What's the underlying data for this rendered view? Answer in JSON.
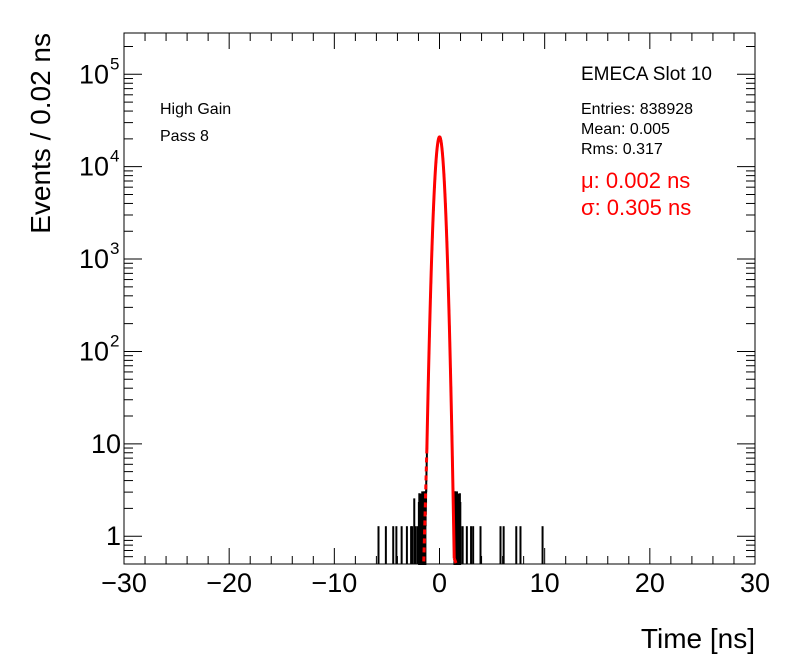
{
  "chart_data": {
    "type": "histogram",
    "xlabel": "Time [ns]",
    "ylabel": "Events / 0.02 ns",
    "xlim": [
      -30,
      30
    ],
    "ylim": [
      0.5,
      280000
    ],
    "yscale": "log",
    "bin_width": 0.02,
    "x_ticks": [
      "−30",
      "−20",
      "−10",
      "0",
      "10",
      "20",
      "30"
    ],
    "x_tick_values": [
      -30,
      -20,
      -10,
      0,
      10,
      20,
      30
    ],
    "y_ticks": [
      {
        "value": 1,
        "base": "1",
        "exp": ""
      },
      {
        "value": 10,
        "base": "10",
        "exp": ""
      },
      {
        "value": 100,
        "base": "10",
        "exp": "2"
      },
      {
        "value": 1000,
        "base": "10",
        "exp": "3"
      },
      {
        "value": 10000,
        "base": "10",
        "exp": "4"
      },
      {
        "value": 100000,
        "base": "10",
        "exp": "5"
      }
    ],
    "annotations": {
      "gain": "High Gain",
      "pass": "Pass 8",
      "slot": "EMECA Slot 10",
      "entries": "Entries: 838928",
      "mean": "Mean: 0.005",
      "rms": "Rms: 0.317",
      "mu": "μ: 0.002 ns",
      "sigma": "σ: 0.305 ns"
    },
    "fit": {
      "mu": 0.002,
      "sigma": 0.305,
      "amplitude": 21000,
      "color": "#ff0000"
    },
    "fit_range_lines": [
      -1.2,
      1.4
    ],
    "histogram_color": "#000000",
    "isolated_entries": [
      {
        "x": -5.8,
        "y": 1
      },
      {
        "x": -5.1,
        "y": 1
      },
      {
        "x": -4.4,
        "y": 1
      },
      {
        "x": -4.1,
        "y": 1
      },
      {
        "x": -3.6,
        "y": 1
      },
      {
        "x": -3.1,
        "y": 1
      },
      {
        "x": -2.7,
        "y": 1
      },
      {
        "x": -2.6,
        "y": 1
      },
      {
        "x": -2.4,
        "y": 2
      },
      {
        "x": -2.3,
        "y": 1
      },
      {
        "x": -2.1,
        "y": 1
      },
      {
        "x": 2.0,
        "y": 1
      },
      {
        "x": 2.2,
        "y": 1
      },
      {
        "x": 2.6,
        "y": 1
      },
      {
        "x": 3.0,
        "y": 1
      },
      {
        "x": 3.2,
        "y": 1
      },
      {
        "x": 3.9,
        "y": 1
      },
      {
        "x": 5.8,
        "y": 1
      },
      {
        "x": 6.1,
        "y": 1
      },
      {
        "x": 7.3,
        "y": 1
      },
      {
        "x": 7.7,
        "y": 1
      },
      {
        "x": 9.8,
        "y": 1
      }
    ]
  }
}
